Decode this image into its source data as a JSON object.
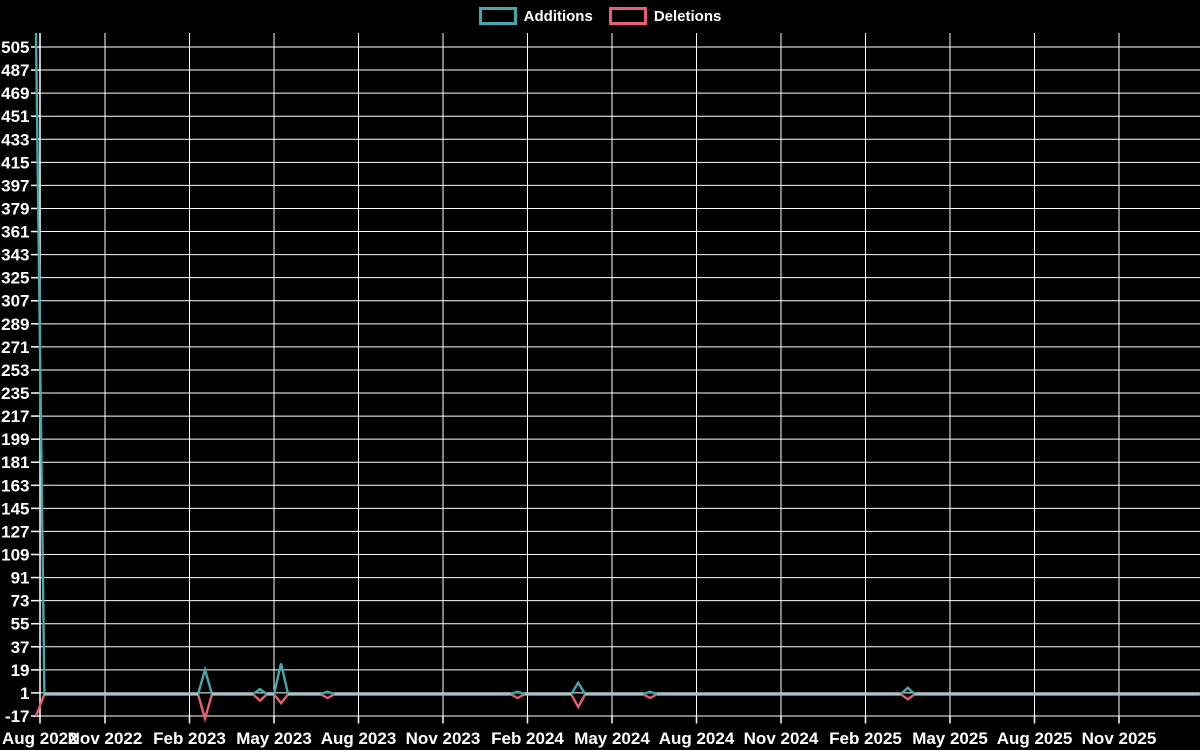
{
  "background_color": "#000000",
  "text_color": "#ffffff",
  "grid_color": "#ffffff",
  "legend": {
    "items": [
      {
        "label": "Additions",
        "color": "#46a8ad"
      },
      {
        "label": "Deletions",
        "color": "#e85d78"
      }
    ]
  },
  "chart_data": {
    "type": "line",
    "title": "",
    "xlabel": "",
    "ylabel": "",
    "grid": true,
    "legend_position": "top-center",
    "x_axis": {
      "tick_labels": [
        "Aug 2022",
        "Nov 2022",
        "Feb 2023",
        "May 2023",
        "Aug 2023",
        "Nov 2023",
        "Feb 2024",
        "May 2024",
        "Aug 2024",
        "Nov 2024",
        "Feb 2025",
        "May 2025",
        "Aug 2025",
        "Nov 2025"
      ],
      "tick_interval_months": 3,
      "m_unit": "months_since_Aug_2022_tick"
    },
    "y_axis": {
      "tick_labels": [
        -17,
        1,
        19,
        37,
        55,
        73,
        91,
        109,
        127,
        145,
        163,
        181,
        199,
        217,
        235,
        253,
        271,
        289,
        307,
        325,
        343,
        361,
        379,
        397,
        415,
        433,
        451,
        469,
        487,
        505
      ],
      "tick_step": 18,
      "min": -22,
      "max": 516
    },
    "series": [
      {
        "name": "Additions",
        "color": "#46a8ad"
      },
      {
        "name": "Deletions",
        "color": "#e85d78"
      }
    ],
    "overlap_zero_line_color": "#a6c3cb",
    "points": [
      {
        "m": 0.55,
        "additions": 516,
        "deletions": -17
      },
      {
        "m": 0.85,
        "additions": 0,
        "deletions": 0
      },
      {
        "m": 6.3,
        "additions": 0,
        "deletions": 0
      },
      {
        "m": 6.55,
        "additions": 19,
        "deletions": -19
      },
      {
        "m": 6.8,
        "additions": 0,
        "deletions": 0
      },
      {
        "m": 8.25,
        "additions": 0,
        "deletions": 0
      },
      {
        "m": 8.5,
        "additions": 4,
        "deletions": -5
      },
      {
        "m": 8.75,
        "additions": 0,
        "deletions": 0
      },
      {
        "m": 9.0,
        "additions": 0,
        "deletions": 0
      },
      {
        "m": 9.25,
        "additions": 24,
        "deletions": -7
      },
      {
        "m": 9.5,
        "additions": 0,
        "deletions": 0
      },
      {
        "m": 10.65,
        "additions": 0,
        "deletions": 0
      },
      {
        "m": 10.9,
        "additions": 2,
        "deletions": -3
      },
      {
        "m": 11.15,
        "additions": 0,
        "deletions": 0
      },
      {
        "m": 17.4,
        "additions": 0,
        "deletions": 0
      },
      {
        "m": 17.65,
        "additions": 2,
        "deletions": -3
      },
      {
        "m": 17.9,
        "additions": 0,
        "deletions": 0
      },
      {
        "m": 19.55,
        "additions": 0,
        "deletions": 0
      },
      {
        "m": 19.8,
        "additions": 9,
        "deletions": -10
      },
      {
        "m": 20.05,
        "additions": 0,
        "deletions": 0
      },
      {
        "m": 22.1,
        "additions": 0,
        "deletions": 0
      },
      {
        "m": 22.35,
        "additions": 2,
        "deletions": -3
      },
      {
        "m": 22.6,
        "additions": 0,
        "deletions": 0
      },
      {
        "m": 31.25,
        "additions": 0,
        "deletions": 0
      },
      {
        "m": 31.5,
        "additions": 5,
        "deletions": -4
      },
      {
        "m": 31.75,
        "additions": 0,
        "deletions": 0
      },
      {
        "m": 41.87,
        "additions": 0,
        "deletions": 0
      }
    ]
  }
}
